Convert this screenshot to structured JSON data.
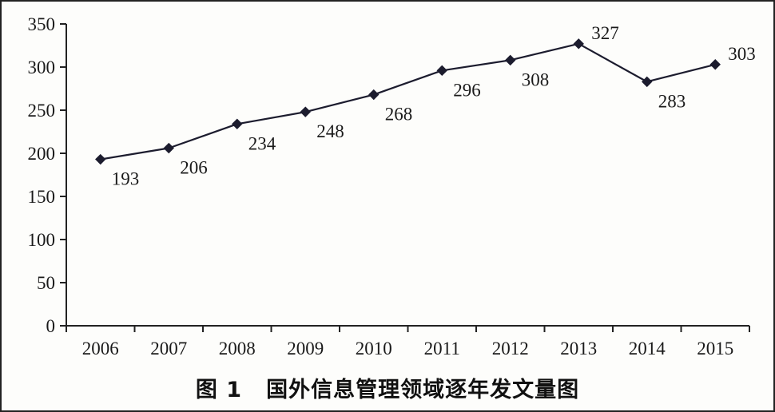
{
  "caption": {
    "figure_number": "图 1",
    "title": "国外信息管理领域逐年发文量图"
  },
  "chart_data": {
    "type": "line",
    "title": "国外信息管理领域逐年发文量图",
    "xlabel": "",
    "ylabel": "",
    "categories": [
      "2006",
      "2007",
      "2008",
      "2009",
      "2010",
      "2011",
      "2012",
      "2013",
      "2014",
      "2015"
    ],
    "series": [
      {
        "values": [
          193,
          206,
          234,
          248,
          268,
          296,
          308,
          327,
          283,
          303
        ]
      }
    ],
    "data_labels": [
      "193",
      "206",
      "234",
      "248",
      "268",
      "296",
      "308",
      "327",
      "283",
      "303"
    ],
    "ylim": [
      0,
      350
    ],
    "yticks": [
      "0",
      "50",
      "100",
      "150",
      "200",
      "250",
      "300",
      "350"
    ],
    "ytick_values": [
      0,
      50,
      100,
      150,
      200,
      250,
      300,
      350
    ],
    "grid": false,
    "legend": "none",
    "marker": "diamond",
    "line_color": "#1c1c2e"
  }
}
